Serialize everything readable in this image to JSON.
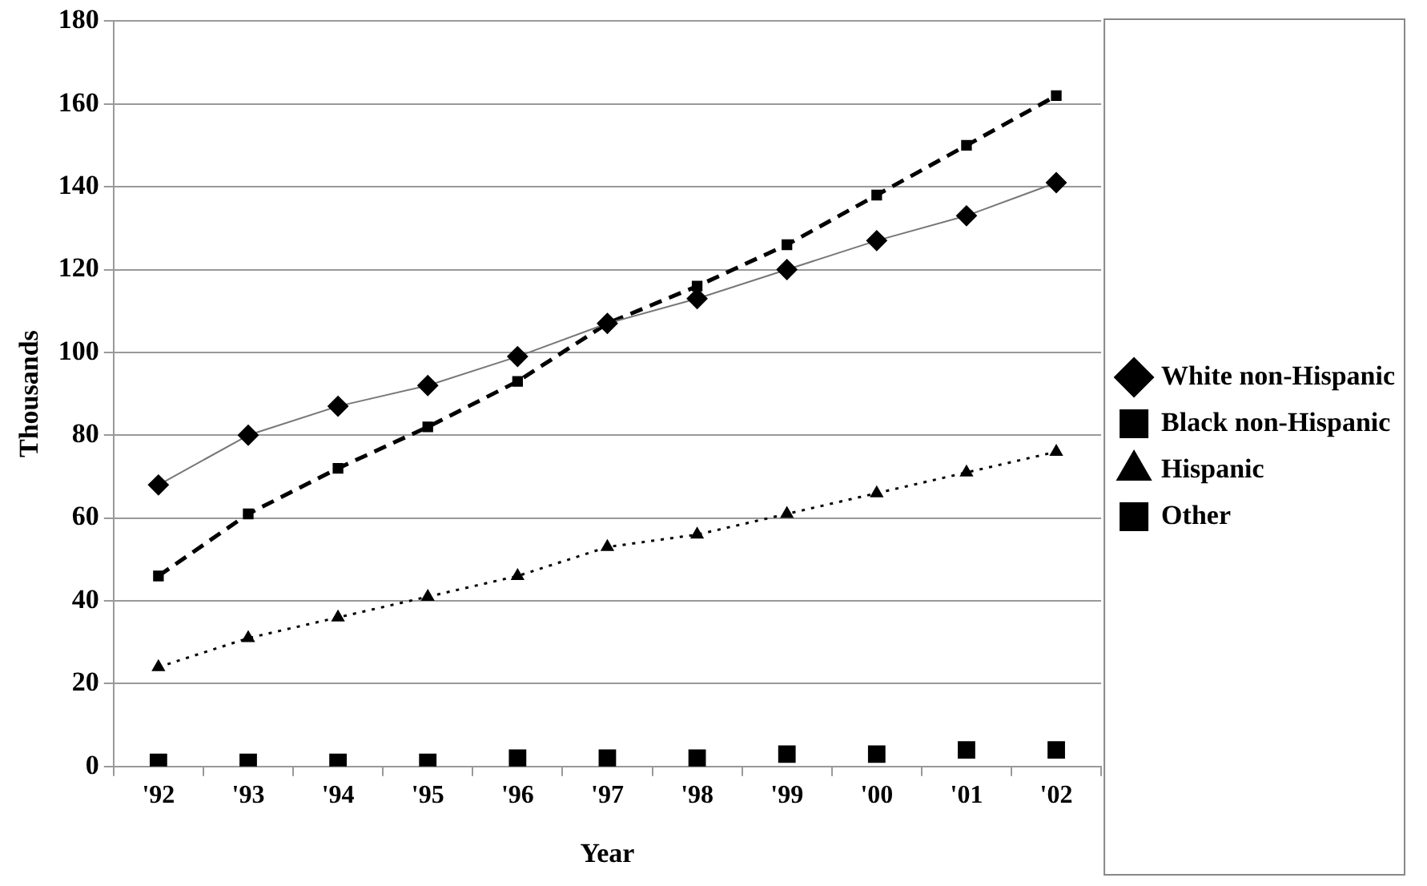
{
  "chart_data": {
    "type": "line",
    "xlabel": "Year",
    "ylabel": "Thousands",
    "categories": [
      "'92",
      "'93",
      "'94",
      "'95",
      "'96",
      "'97",
      "'98",
      "'99",
      "'00",
      "'01",
      "'02"
    ],
    "series": [
      {
        "name": "White non-Hispanic",
        "color": "#000000",
        "marker": "diamond",
        "line_style": "solid",
        "values": [
          68,
          80,
          87,
          92,
          99,
          107,
          113,
          120,
          127,
          133,
          141
        ]
      },
      {
        "name": "Black non-Hispanic",
        "color": "#000000",
        "marker": "square",
        "line_style": "dashed",
        "values": [
          46,
          61,
          72,
          82,
          93,
          107,
          116,
          126,
          138,
          150,
          162
        ]
      },
      {
        "name": "Hispanic",
        "color": "#000000",
        "marker": "triangle",
        "line_style": "dotted",
        "values": [
          24,
          31,
          36,
          41,
          46,
          53,
          56,
          61,
          66,
          71,
          76
        ]
      },
      {
        "name": "Other",
        "type": "scatter",
        "color": "#000000",
        "marker": "square",
        "values": [
          1,
          1,
          1,
          1,
          2,
          2,
          2,
          3,
          3,
          4,
          4
        ]
      }
    ],
    "ylim": [
      0,
      180
    ],
    "yticks": [
      0,
      20,
      40,
      60,
      80,
      100,
      120,
      140,
      160,
      180
    ],
    "grid": "y",
    "legend": "right"
  }
}
